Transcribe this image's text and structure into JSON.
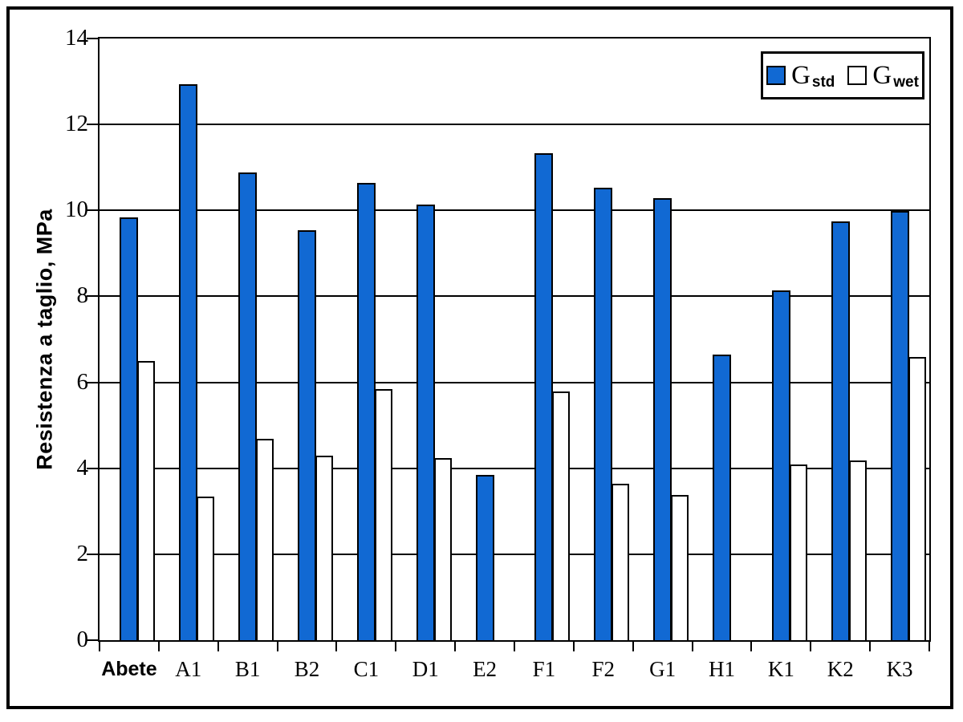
{
  "figure": {
    "background_color": "#ffffff",
    "frame_color": "#000000"
  },
  "chart_data": {
    "type": "bar",
    "title": "",
    "xlabel": "",
    "ylabel": "Resistenza a taglio, MPa",
    "ylim": [
      0,
      14
    ],
    "yticks": [
      "0",
      "2",
      "4",
      "6",
      "8",
      "10",
      "12",
      "14"
    ],
    "grid": "horizontal-solid-black",
    "legend_position": "top-right-inside",
    "categories": [
      "Abete",
      "A1",
      "B1",
      "B2",
      "C1",
      "D1",
      "E2",
      "F1",
      "F2",
      "G1",
      "H1",
      "K1",
      "K2",
      "K3"
    ],
    "bold_categories": [
      "Abete"
    ],
    "bar_outline_color": "#000000",
    "series": [
      {
        "name": "G_std",
        "legend_label": "G",
        "legend_sub": "std",
        "color": "#1169d3",
        "values": [
          9.8,
          12.9,
          10.85,
          9.5,
          10.6,
          10.1,
          3.8,
          11.3,
          10.5,
          10.25,
          6.6,
          8.1,
          9.7,
          9.95
        ]
      },
      {
        "name": "G_wet",
        "legend_label": "G",
        "legend_sub": "wet",
        "color": "#ffffff",
        "values": [
          6.45,
          3.3,
          4.65,
          4.25,
          5.8,
          4.2,
          null,
          5.75,
          3.6,
          3.35,
          null,
          4.05,
          4.15,
          6.55
        ]
      }
    ]
  }
}
